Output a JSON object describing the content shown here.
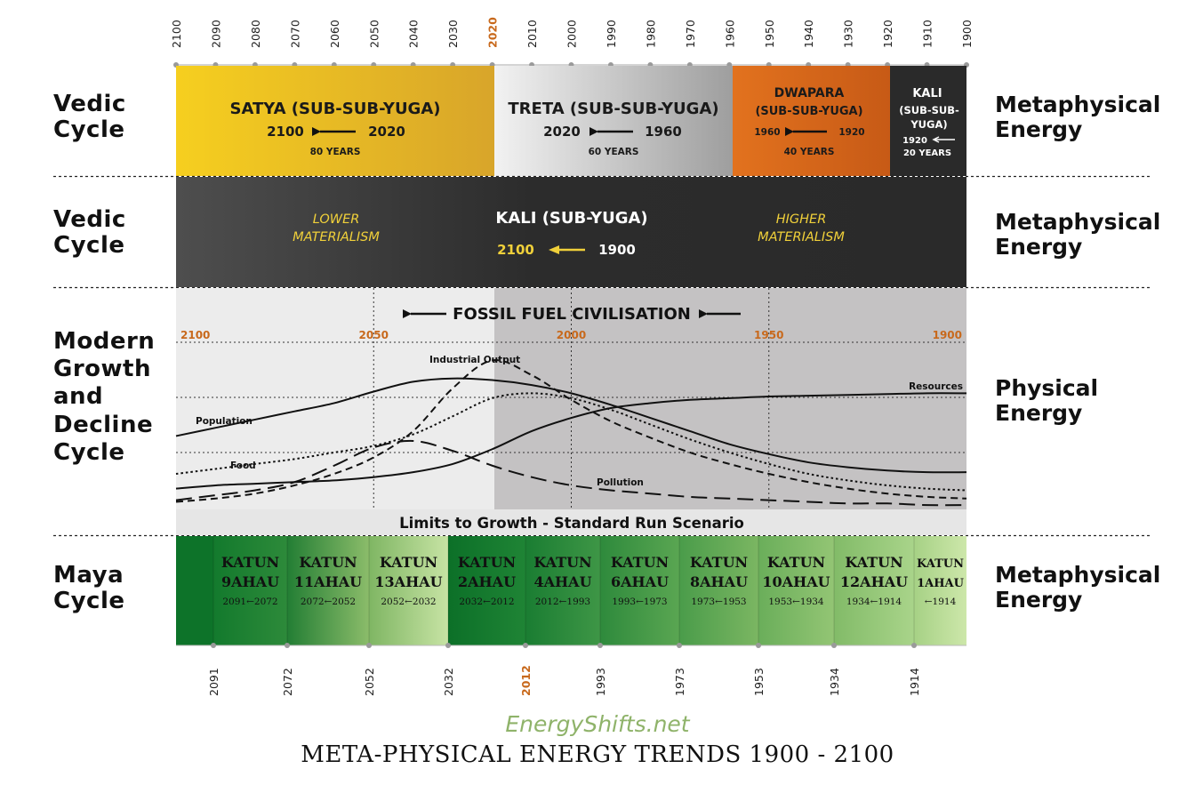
{
  "top_axis": {
    "years": [
      "2100",
      "2090",
      "2080",
      "2070",
      "2060",
      "2050",
      "2040",
      "2030",
      "2020",
      "2010",
      "2000",
      "1990",
      "1980",
      "1970",
      "1960",
      "1950",
      "1940",
      "1930",
      "1920",
      "1910",
      "1900"
    ],
    "highlight": "2020"
  },
  "bottom_axis": {
    "years": [
      "2091",
      "2072",
      "2052",
      "2032",
      "2012",
      "1993",
      "1973",
      "1953",
      "1934",
      "1914"
    ],
    "highlight": "2012"
  },
  "rows": {
    "vedic1": {
      "label": "Vedic Cycle",
      "right": "Metaphysical Energy"
    },
    "vedic2": {
      "label": "Vedic Cycle",
      "right": "Metaphysical Energy"
    },
    "modern": {
      "label": "Modern Growth and Decline Cycle",
      "right": "Physical Energy"
    },
    "maya": {
      "label": "Maya Cycle",
      "right": "Metaphysical Energy"
    }
  },
  "sub_sub_yugas": [
    {
      "title": "SATYA (SUB-SUB-YUGA)",
      "from": "2100",
      "to": "2020",
      "duration": "80 YEARS",
      "color": "#e8b51c"
    },
    {
      "title": "TRETA (SUB-SUB-YUGA)",
      "from": "2020",
      "to": "1960",
      "duration": "60 YEARS",
      "color": "#cfcfcf"
    },
    {
      "title_line1": "DWAPARA",
      "title_line2": "(SUB-SUB-YUGA)",
      "from": "1960",
      "to": "1920",
      "duration": "40 YEARS",
      "color": "#e06a1f"
    },
    {
      "title_line1": "KALI",
      "title_line2": "(SUB-SUB-",
      "title_line3": "YUGA)",
      "from": "1920",
      "duration": "20 YEARS",
      "color": "#2a2a2a"
    }
  ],
  "sub_yuga": {
    "title": "KALI (SUB-YUGA)",
    "from": "2100",
    "to": "1900",
    "left_note_1": "LOWER",
    "left_note_2": "MATERIALISM",
    "right_note_1": "HIGHER",
    "right_note_2": "MATERIALISM",
    "arrow_color": "#f0d03a"
  },
  "fossil": {
    "title": "FOSSIL FUEL CIVILISATION",
    "year_labels": [
      "2100",
      "2050",
      "2000",
      "1950",
      "1900"
    ],
    "footer": "Limits to Growth - Standard Run Scenario"
  },
  "chart_data": {
    "type": "line",
    "title": "Limits to Growth - Standard Run Scenario",
    "xlabel": "",
    "ylabel": "",
    "x_direction": "reversed",
    "xlim": [
      2100,
      1900
    ],
    "ylim": [
      0,
      1
    ],
    "x": [
      2100,
      2090,
      2080,
      2070,
      2060,
      2050,
      2040,
      2030,
      2020,
      2010,
      2000,
      1990,
      1980,
      1970,
      1960,
      1950,
      1940,
      1930,
      1920,
      1910,
      1900
    ],
    "series": [
      {
        "name": "Population",
        "style": "solid",
        "values": [
          0.43,
          0.48,
          0.53,
          0.58,
          0.63,
          0.7,
          0.76,
          0.78,
          0.77,
          0.74,
          0.69,
          0.62,
          0.54,
          0.46,
          0.38,
          0.32,
          0.27,
          0.24,
          0.22,
          0.21,
          0.21
        ]
      },
      {
        "name": "Industrial Output",
        "style": "dashed",
        "values": [
          0.03,
          0.05,
          0.08,
          0.13,
          0.2,
          0.3,
          0.46,
          0.72,
          0.89,
          0.8,
          0.65,
          0.52,
          0.42,
          0.33,
          0.26,
          0.2,
          0.15,
          0.11,
          0.08,
          0.06,
          0.05
        ]
      },
      {
        "name": "Food",
        "style": "dotted",
        "values": [
          0.2,
          0.23,
          0.26,
          0.29,
          0.33,
          0.37,
          0.44,
          0.55,
          0.66,
          0.69,
          0.66,
          0.59,
          0.5,
          0.41,
          0.33,
          0.26,
          0.2,
          0.16,
          0.13,
          0.11,
          0.1
        ]
      },
      {
        "name": "Resources",
        "style": "solid",
        "values": [
          0.11,
          0.13,
          0.14,
          0.15,
          0.16,
          0.18,
          0.21,
          0.26,
          0.35,
          0.46,
          0.54,
          0.6,
          0.63,
          0.65,
          0.66,
          0.67,
          0.675,
          0.68,
          0.685,
          0.69,
          0.69
        ]
      },
      {
        "name": "Pollution",
        "style": "longdash",
        "values": [
          0.04,
          0.07,
          0.1,
          0.15,
          0.25,
          0.36,
          0.4,
          0.34,
          0.25,
          0.18,
          0.13,
          0.1,
          0.08,
          0.06,
          0.05,
          0.04,
          0.03,
          0.02,
          0.02,
          0.01,
          0.01
        ]
      }
    ]
  },
  "katuns": [
    {
      "line1": "KATUN",
      "line2": "9AHAU",
      "range": "2091←2072"
    },
    {
      "line1": "KATUN",
      "line2": "11AHAU",
      "range": "2072←2052"
    },
    {
      "line1": "KATUN",
      "line2": "13AHAU",
      "range": "2052←2032"
    },
    {
      "line1": "KATUN",
      "line2": "2AHAU",
      "range": "2032←2012"
    },
    {
      "line1": "KATUN",
      "line2": "4AHAU",
      "range": "2012←1993"
    },
    {
      "line1": "KATUN",
      "line2": "6AHAU",
      "range": "1993←1973"
    },
    {
      "line1": "KATUN",
      "line2": "8AHAU",
      "range": "1973←1953"
    },
    {
      "line1": "KATUN",
      "line2": "10AHAU",
      "range": "1953←1934"
    },
    {
      "line1": "KATUN",
      "line2": "12AHAU",
      "range": "1934←1914"
    },
    {
      "line1": "KATUN",
      "line2": "1AHAU",
      "range": "←1914"
    }
  ],
  "footer": {
    "site": "EnergyShifts.net",
    "title": "META-PHYSICAL ENERGY TRENDS 1900 - 2100"
  },
  "colors": {
    "accent_orange": "#c8691c",
    "maya_dark": "#0f7a2c",
    "maya_light": "#c7e3a4",
    "grey_dark": "#3e3e3e"
  }
}
